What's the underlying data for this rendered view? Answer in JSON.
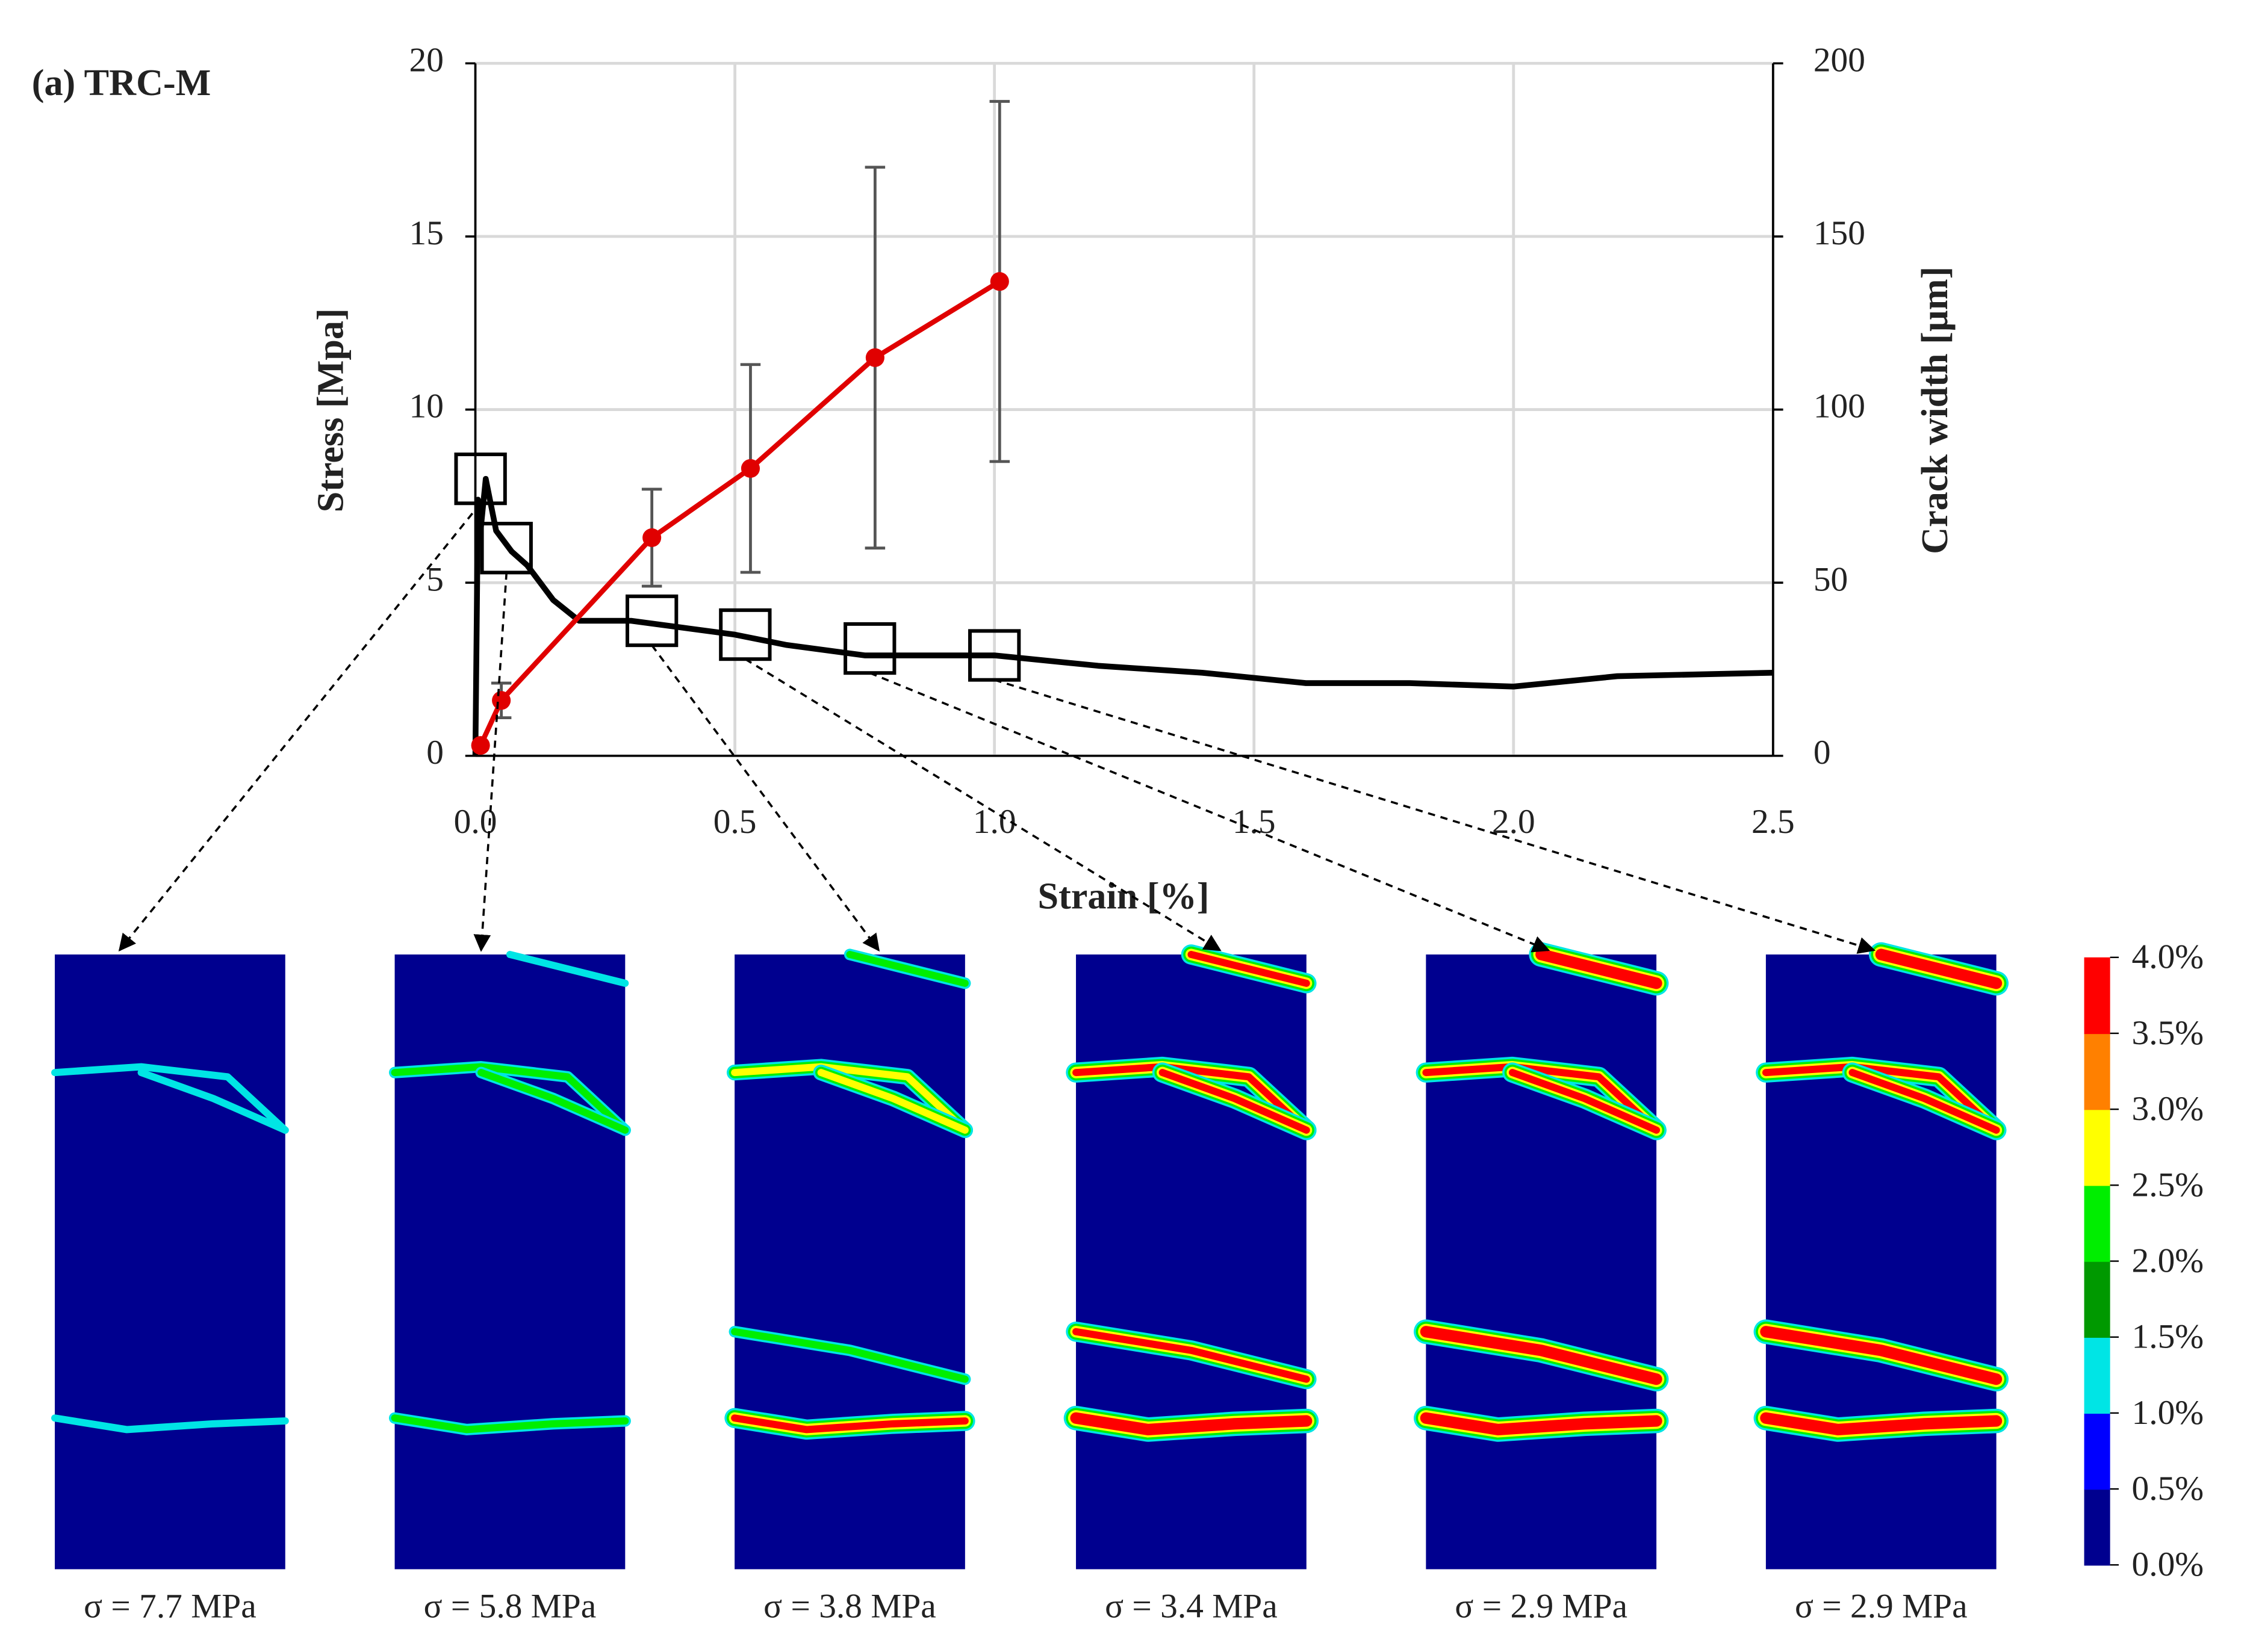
{
  "chart_data": {
    "type": "line",
    "title": "(a) TRC-M",
    "xlabel": "Strain [%]",
    "ylabel": "Stress [Mpa]",
    "y2label": "Crack width [µm]",
    "xlim": [
      0,
      2.5
    ],
    "xticks": [
      {
        "value": 0,
        "label": "0.0"
      },
      0.5,
      {
        "value": 1,
        "label": "1.0"
      },
      1.5,
      {
        "value": 2,
        "label": "2.0"
      },
      2.5
    ],
    "ylim": [
      0,
      20
    ],
    "yticks": [
      0,
      5,
      10,
      15,
      20
    ],
    "y2lim": [
      0,
      200
    ],
    "y2ticks": [
      0,
      50,
      100,
      150,
      200
    ],
    "grid": true,
    "series": [
      {
        "color": "#000000",
        "x": [
          0,
          0.005,
          0.01,
          0.02,
          0.04,
          0.07,
          0.1,
          0.15,
          0.2,
          0.3,
          0.4,
          0.5,
          0.6,
          0.75,
          0.9,
          1.0,
          1.2,
          1.4,
          1.6,
          1.8,
          2.0,
          2.2,
          2.5
        ],
        "values": [
          0,
          7.4,
          6.5,
          8.0,
          6.5,
          5.9,
          5.5,
          4.5,
          3.9,
          3.9,
          3.7,
          3.5,
          3.2,
          2.9,
          2.9,
          2.9,
          2.6,
          2.4,
          2.1,
          2.1,
          2.0,
          2.3,
          2.4
        ]
      },
      {
        "color": "#e00000",
        "axis": "y2",
        "x": [
          0.01,
          0.05,
          0.34,
          0.53,
          0.77,
          1.01
        ],
        "values": [
          3,
          16,
          63,
          83,
          115,
          137
        ],
        "errors": [
          null,
          5,
          14,
          30,
          55,
          52
        ]
      },
      {
        "color": "#000000",
        "marker": "square",
        "x": [
          0.01,
          0.06,
          0.34,
          0.52,
          0.76,
          1.0
        ],
        "values": [
          8.0,
          6.0,
          3.9,
          3.5,
          3.1,
          2.9
        ]
      }
    ],
    "panels": [
      "σ = 7.7 MPa",
      "σ = 5.8 MPa",
      "σ = 3.8 MPa",
      "σ = 3.4 MPa",
      "σ = 2.9 MPa",
      "σ = 2.9 MPa"
    ],
    "colorbar": {
      "colors": [
        "#00008f",
        "#0000ff",
        "#00e5e5",
        "#009900",
        "#00ee00",
        "#ffff00",
        "#ff8000",
        "#ff0000"
      ],
      "ticks": [
        {
          "value": 0,
          "label": "0.0%"
        },
        {
          "value": 0.5,
          "label": "0.5%"
        },
        {
          "value": 1,
          "label": "1.0%"
        },
        {
          "value": 1.5,
          "label": "1.5%"
        },
        {
          "value": 2,
          "label": "2.0%"
        },
        {
          "value": 2.5,
          "label": "2.5%"
        },
        {
          "value": 3,
          "label": "3.0%"
        },
        {
          "value": 3.5,
          "label": "3.5%"
        },
        {
          "value": 4,
          "label": "4.0%"
        }
      ]
    }
  }
}
